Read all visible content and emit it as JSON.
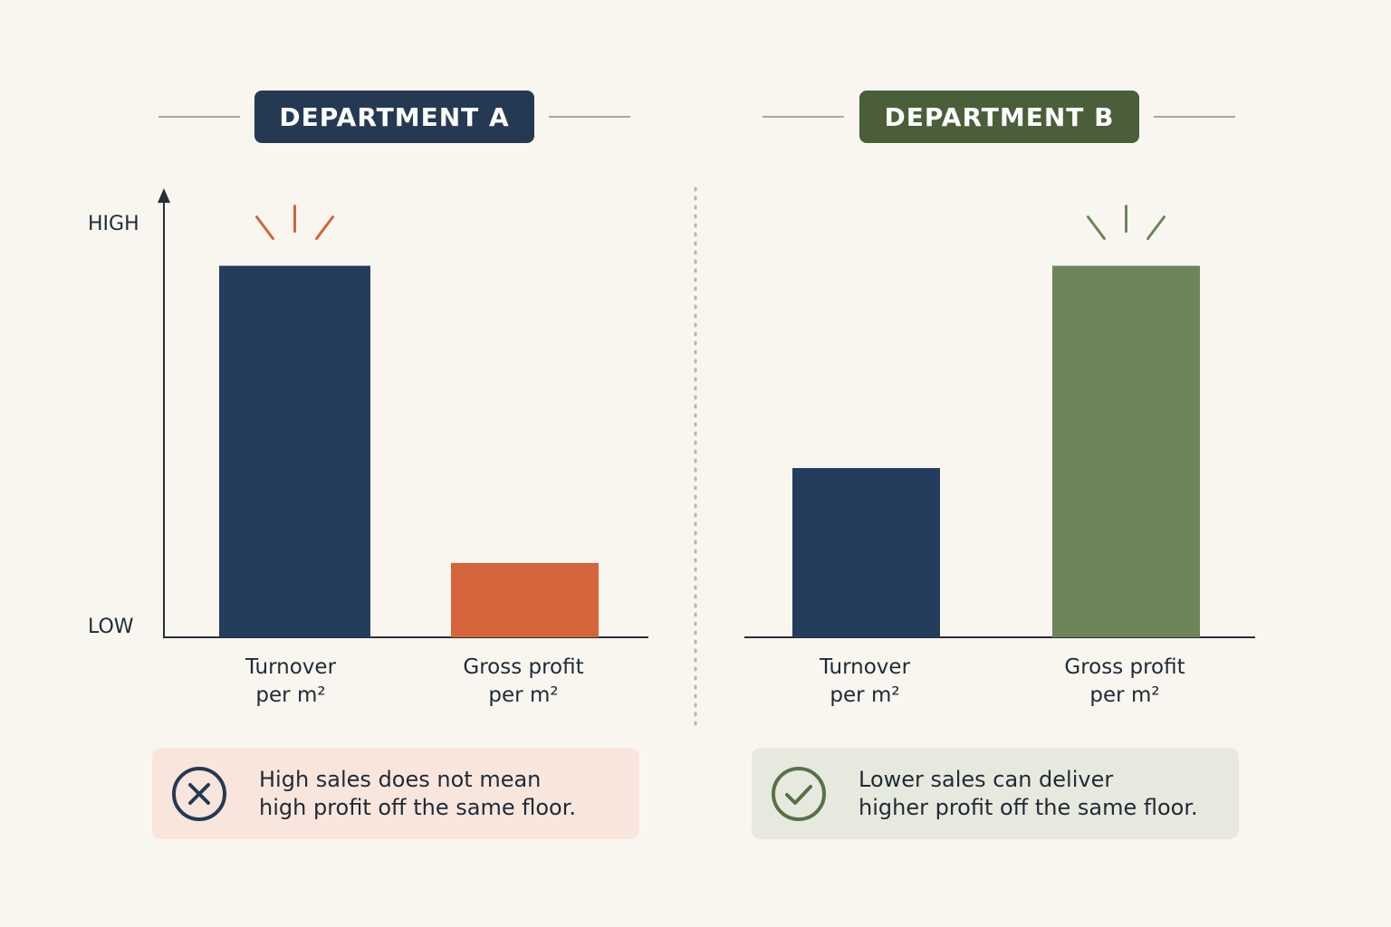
{
  "axis": {
    "high_label": "HIGH",
    "low_label": "LOW"
  },
  "colors": {
    "turnover": "#253d5c",
    "gross_profit_a": "#d4643a",
    "gross_profit_b": "#6e855c",
    "badge_a": "#253a52",
    "badge_b": "#495e39",
    "note_a_bg": "#f8e6dd",
    "note_b_bg": "#e8e9de"
  },
  "chart_data": [
    {
      "type": "bar",
      "title": "DEPARTMENT A",
      "categories": [
        "Turnover per m²",
        "Gross profit per m²"
      ],
      "values": [
        0.9,
        0.18
      ],
      "ylim": [
        0,
        1
      ],
      "yticks": [
        "LOW",
        "HIGH"
      ],
      "highlight_category": "Turnover per m²",
      "note": [
        "High sales does not mean",
        "high profit off the same floor."
      ],
      "note_icon": "x-circle-icon"
    },
    {
      "type": "bar",
      "title": "DEPARTMENT B",
      "categories": [
        "Turnover per m²",
        "Gross profit per m²"
      ],
      "values": [
        0.41,
        0.9
      ],
      "ylim": [
        0,
        1
      ],
      "highlight_category": "Gross profit per m²",
      "note": [
        "Lower sales can deliver",
        "higher profit off the same floor."
      ],
      "note_icon": "check-circle-icon"
    }
  ],
  "labels": {
    "a_cat1_line1": "Turnover",
    "a_cat1_line2": "per m²",
    "a_cat2_line1": "Gross profit",
    "a_cat2_line2": "per m²",
    "b_cat1_line1": "Turnover",
    "b_cat1_line2": "per m²",
    "b_cat2_line1": "Gross profit",
    "b_cat2_line2": "per m²"
  }
}
